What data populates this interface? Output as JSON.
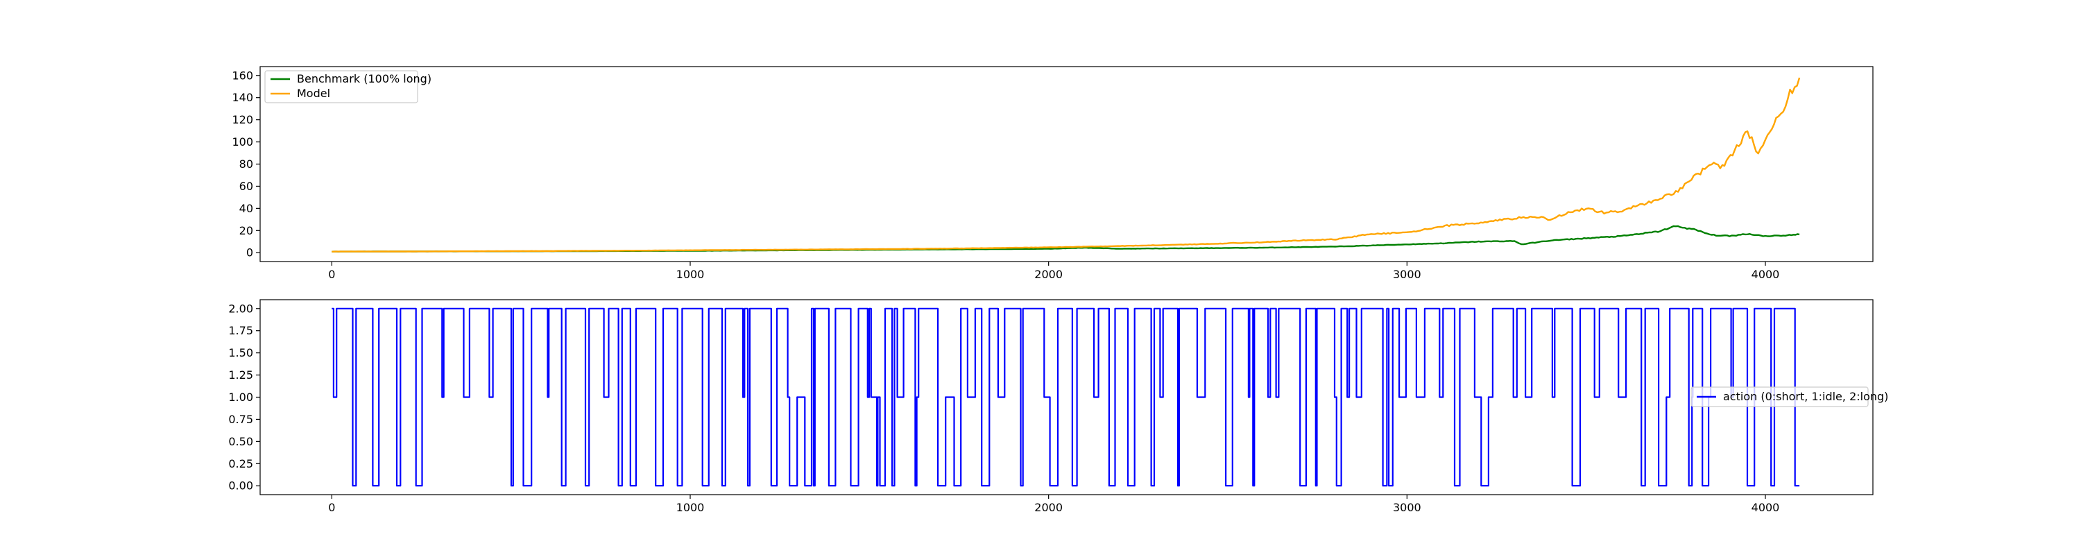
{
  "chart_data": [
    {
      "type": "line",
      "title": "",
      "xlabel": "",
      "ylabel": "",
      "xlim": [
        -200,
        4300
      ],
      "ylim": [
        -8,
        168
      ],
      "x_ticks": [
        0,
        1000,
        2000,
        3000,
        4000
      ],
      "y_ticks": [
        0,
        20,
        40,
        60,
        80,
        100,
        120,
        140,
        160
      ],
      "legend_position": "upper-left",
      "grid": false,
      "series": [
        {
          "name": "Benchmark (100% long)",
          "color": "#008000",
          "points": [
            [
              0,
              1.0
            ],
            [
              200,
              1.1
            ],
            [
              400,
              1.2
            ],
            [
              600,
              1.3
            ],
            [
              800,
              1.5
            ],
            [
              1000,
              1.7
            ],
            [
              1200,
              2.0
            ],
            [
              1400,
              2.4
            ],
            [
              1600,
              2.8
            ],
            [
              1800,
              3.1
            ],
            [
              2000,
              3.5
            ],
            [
              2100,
              4.5
            ],
            [
              2200,
              3.6
            ],
            [
              2400,
              4.0
            ],
            [
              2600,
              4.5
            ],
            [
              2800,
              5.5
            ],
            [
              2900,
              6.5
            ],
            [
              3000,
              7.5
            ],
            [
              3100,
              8.5
            ],
            [
              3200,
              10.0
            ],
            [
              3300,
              10.5
            ],
            [
              3320,
              7.5
            ],
            [
              3400,
              11.0
            ],
            [
              3500,
              13.0
            ],
            [
              3600,
              15.0
            ],
            [
              3700,
              19.0
            ],
            [
              3750,
              24.0
            ],
            [
              3800,
              21.0
            ],
            [
              3850,
              16.0
            ],
            [
              3900,
              15.0
            ],
            [
              3950,
              17.0
            ],
            [
              4000,
              15.0
            ],
            [
              4050,
              15.5
            ],
            [
              4095,
              16.5
            ]
          ]
        },
        {
          "name": "Model",
          "color": "#ffa500",
          "points": [
            [
              0,
              1.0
            ],
            [
              200,
              1.1
            ],
            [
              400,
              1.3
            ],
            [
              600,
              1.5
            ],
            [
              800,
              1.8
            ],
            [
              1000,
              2.2
            ],
            [
              1200,
              2.6
            ],
            [
              1400,
              3.0
            ],
            [
              1600,
              3.4
            ],
            [
              1800,
              4.0
            ],
            [
              2000,
              4.8
            ],
            [
              2200,
              6.0
            ],
            [
              2400,
              7.5
            ],
            [
              2600,
              9.5
            ],
            [
              2700,
              11.0
            ],
            [
              2800,
              12.0
            ],
            [
              2900,
              17.0
            ],
            [
              3000,
              18.0
            ],
            [
              3050,
              21.0
            ],
            [
              3100,
              24.0
            ],
            [
              3200,
              27.0
            ],
            [
              3300,
              31.0
            ],
            [
              3350,
              33.0
            ],
            [
              3400,
              30.0
            ],
            [
              3450,
              36.0
            ],
            [
              3500,
              40.0
            ],
            [
              3550,
              36.0
            ],
            [
              3600,
              38.0
            ],
            [
              3650,
              43.0
            ],
            [
              3700,
              48.0
            ],
            [
              3750,
              55.0
            ],
            [
              3800,
              68.0
            ],
            [
              3850,
              80.0
            ],
            [
              3880,
              78.0
            ],
            [
              3920,
              95.0
            ],
            [
              3950,
              110.0
            ],
            [
              3980,
              90.0
            ],
            [
              4000,
              100.0
            ],
            [
              4030,
              120.0
            ],
            [
              4050,
              130.0
            ],
            [
              4075,
              148.0
            ],
            [
              4095,
              158.0
            ]
          ]
        }
      ]
    },
    {
      "type": "line",
      "title": "",
      "xlabel": "",
      "ylabel": "",
      "xlim": [
        -200,
        4300
      ],
      "ylim": [
        -0.1,
        2.1
      ],
      "x_ticks": [
        0,
        1000,
        2000,
        3000,
        4000
      ],
      "y_ticks": [
        "0.00",
        "0.25",
        "0.50",
        "0.75",
        "1.00",
        "1.25",
        "1.50",
        "1.75",
        "2.00"
      ],
      "legend_position": "center-right",
      "grid": false,
      "series": [
        {
          "name": "action (0:short, 1:idle, 2:long)",
          "color": "#0000ff",
          "step": true,
          "x_range": [
            0,
            4095
          ],
          "levels": [
            0,
            1,
            2
          ]
        }
      ]
    }
  ]
}
